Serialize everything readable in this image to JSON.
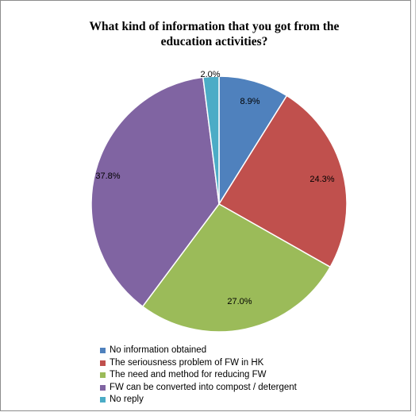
{
  "chart_data": {
    "type": "pie",
    "title_lines": [
      "What kind of information that you got from the",
      "education activities?"
    ],
    "slices": [
      {
        "label": "No information obtained",
        "value": 8.9,
        "display": "8.9%",
        "color": "#4f81bd"
      },
      {
        "label": "The seriousness problem of FW in HK",
        "value": 24.3,
        "display": "24.3%",
        "color": "#c0504d"
      },
      {
        "label": "The need and method for reducing FW",
        "value": 27.0,
        "display": "27.0%",
        "color": "#9bbb59"
      },
      {
        "label": "FW can be converted into compost / detergent",
        "value": 37.8,
        "display": "37.8%",
        "color": "#8064a2"
      },
      {
        "label": "No reply",
        "value": 2.0,
        "display": "2.0%",
        "color": "#4bacc6"
      }
    ],
    "legend_position": "bottom-left"
  }
}
